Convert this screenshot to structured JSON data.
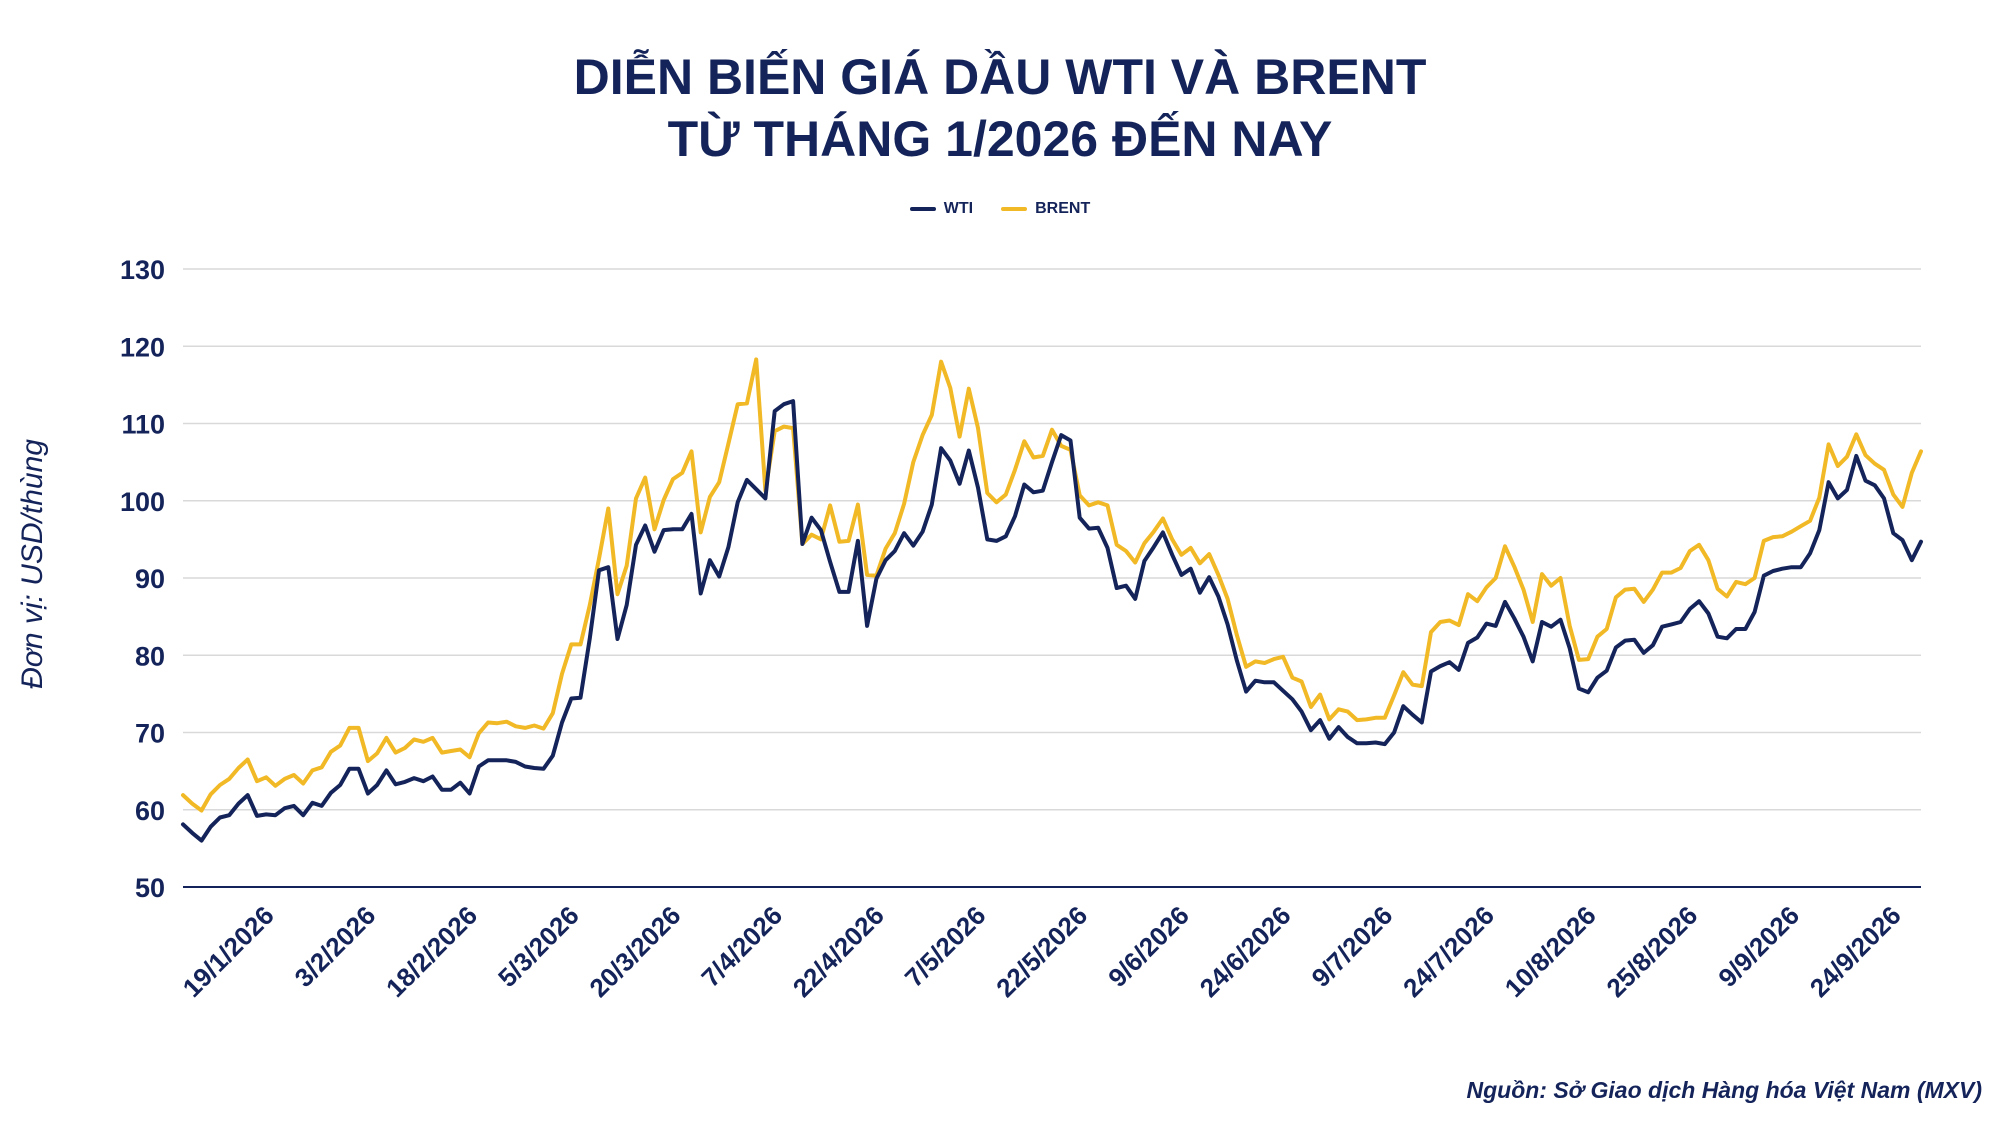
{
  "title_line1": "DIỄN BIẾN GIÁ DẦU WTI VÀ BRENT",
  "title_line2": "TỪ THÁNG 1/2026 ĐẾN NAY",
  "ylabel": "Đơn vị: USD/thùng",
  "source": "Nguồn: Sở Giao dịch Hàng hóa Việt Nam (MXV)",
  "colors": {
    "wti": "#14245a",
    "brent": "#f2b926",
    "grid": "#d9d9d9",
    "axis": "#14245a"
  },
  "chart_data": {
    "type": "line",
    "title": "DIỄN BIẾN GIÁ DẦU WTI VÀ BRENT TỪ THÁNG 1/2026 ĐẾN NAY",
    "ylabel": "Đơn vị: USD/thùng",
    "ylim": [
      50,
      130
    ],
    "yticks": [
      50,
      60,
      70,
      80,
      90,
      100,
      110,
      120,
      130
    ],
    "grid": true,
    "legend_position": "top-center",
    "xtick_labels": [
      "19/1/2026",
      "3/2/2026",
      "18/2/2026",
      "5/3/2026",
      "20/3/2026",
      "7/4/2026",
      "22/4/2026",
      "7/5/2026",
      "22/5/2026",
      "9/6/2026",
      "24/6/2026",
      "9/7/2026",
      "24/7/2026",
      "10/8/2026",
      "25/8/2026",
      "9/9/2026",
      "24/9/2026"
    ],
    "xtick_index": [
      10,
      21,
      32,
      43,
      54,
      65,
      76,
      87,
      98,
      109,
      120,
      131,
      142,
      153,
      164,
      175,
      186
    ],
    "series": [
      {
        "name": "WTI",
        "color": "#14245a",
        "values": [
          58.1,
          57.0,
          56.0,
          57.8,
          59.0,
          59.3,
          60.8,
          61.9,
          59.2,
          59.4,
          59.3,
          60.2,
          60.5,
          59.3,
          60.9,
          60.5,
          62.2,
          63.2,
          65.3,
          65.3,
          62.1,
          63.2,
          65.1,
          63.3,
          63.6,
          64.1,
          63.7,
          64.3,
          62.6,
          62.6,
          63.5,
          62.1,
          65.6,
          66.4,
          66.4,
          66.4,
          66.2,
          65.6,
          65.4,
          65.3,
          67.0,
          71.3,
          74.4,
          74.5,
          82.2,
          91.0,
          91.4,
          82.1,
          86.5,
          94.3,
          96.8,
          93.4,
          96.2,
          96.3,
          96.3,
          98.3,
          88.0,
          92.3,
          90.2,
          94.0,
          99.8,
          102.7,
          101.5,
          100.3,
          111.6,
          112.5,
          112.9,
          94.4,
          97.8,
          96.2,
          92.1,
          88.2,
          88.2,
          94.8,
          83.8,
          89.9,
          92.3,
          93.5,
          95.8,
          94.2,
          96.0,
          99.5,
          106.8,
          105.2,
          102.2,
          106.5,
          101.7,
          95.0,
          94.8,
          95.4,
          98.0,
          102.1,
          101.1,
          101.3,
          105.0,
          108.5,
          107.8,
          97.8,
          96.4,
          96.5,
          93.9,
          88.7,
          89.0,
          87.3,
          92.2,
          94.0,
          95.9,
          93.0,
          90.4,
          91.2,
          88.1,
          90.1,
          87.6,
          84.0,
          79.3,
          75.3,
          76.7,
          76.5,
          76.5,
          75.4,
          74.3,
          72.7,
          70.3,
          71.6,
          69.2,
          70.7,
          69.4,
          68.6,
          68.6,
          68.7,
          68.5,
          70.0,
          73.4,
          72.3,
          71.3,
          77.9,
          78.6,
          79.1,
          78.1,
          81.6,
          82.3,
          84.1,
          83.8,
          86.9,
          84.8,
          82.4,
          79.2,
          84.3,
          83.7,
          84.6,
          80.9,
          75.7,
          75.2,
          77.1,
          78.0,
          81.0,
          81.9,
          82.0,
          80.3,
          81.3,
          83.7,
          84.0,
          84.3,
          86.0,
          87.0,
          85.4,
          82.4,
          82.2,
          83.4,
          83.4,
          85.6,
          90.3,
          90.9,
          91.2,
          91.4,
          91.4,
          93.2,
          96.2,
          102.4,
          100.3,
          101.4,
          105.8,
          102.6,
          102.0,
          100.3,
          95.8,
          94.9,
          92.3,
          94.7
        ]
      },
      {
        "name": "BRENT",
        "color": "#f2b926",
        "values": [
          61.9,
          60.8,
          59.9,
          62.0,
          63.2,
          64.0,
          65.4,
          66.5,
          63.7,
          64.2,
          63.1,
          64.0,
          64.5,
          63.4,
          65.1,
          65.5,
          67.5,
          68.3,
          70.6,
          70.6,
          66.3,
          67.3,
          69.3,
          67.4,
          68.0,
          69.1,
          68.8,
          69.3,
          67.4,
          67.6,
          67.8,
          66.8,
          69.9,
          71.3,
          71.2,
          71.4,
          70.8,
          70.6,
          70.9,
          70.5,
          72.5,
          77.6,
          81.4,
          81.4,
          86.5,
          92.5,
          99.0,
          87.9,
          91.6,
          100.3,
          103.0,
          96.3,
          100.1,
          102.8,
          103.6,
          106.4,
          95.9,
          100.5,
          102.4,
          107.4,
          112.5,
          112.6,
          118.3,
          101.3,
          109.0,
          109.6,
          109.4,
          94.4,
          95.6,
          95.0,
          99.4,
          94.7,
          94.8,
          99.5,
          90.4,
          90.3,
          93.8,
          95.8,
          99.6,
          105.0,
          108.5,
          111.1,
          118.0,
          114.6,
          108.3,
          114.5,
          109.4,
          101.0,
          99.8,
          100.8,
          104.0,
          107.7,
          105.6,
          105.8,
          109.2,
          107.1,
          106.6,
          100.7,
          99.4,
          99.8,
          99.4,
          94.3,
          93.5,
          92.0,
          94.5,
          96.0,
          97.7,
          95.0,
          93.0,
          93.9,
          91.9,
          93.1,
          90.4,
          87.3,
          82.6,
          78.5,
          79.2,
          79.0,
          79.5,
          79.8,
          77.1,
          76.6,
          73.3,
          74.9,
          71.7,
          73.0,
          72.7,
          71.6,
          71.7,
          71.9,
          71.9,
          74.8,
          77.8,
          76.2,
          76.0,
          83.0,
          84.3,
          84.5,
          83.9,
          87.9,
          87.0,
          88.8,
          90.0,
          94.1,
          91.5,
          88.5,
          84.3,
          90.5,
          89.0,
          90.0,
          83.8,
          79.4,
          79.5,
          82.4,
          83.4,
          87.5,
          88.5,
          88.6,
          86.9,
          88.5,
          90.7,
          90.7,
          91.3,
          93.5,
          94.3,
          92.3,
          88.6,
          87.6,
          89.5,
          89.2,
          90.0,
          94.8,
          95.3,
          95.4,
          96.0,
          96.7,
          97.4,
          100.4,
          107.3,
          104.5,
          105.7,
          108.6,
          105.9,
          104.8,
          104.0,
          100.8,
          99.2,
          103.6,
          106.4
        ]
      }
    ]
  }
}
